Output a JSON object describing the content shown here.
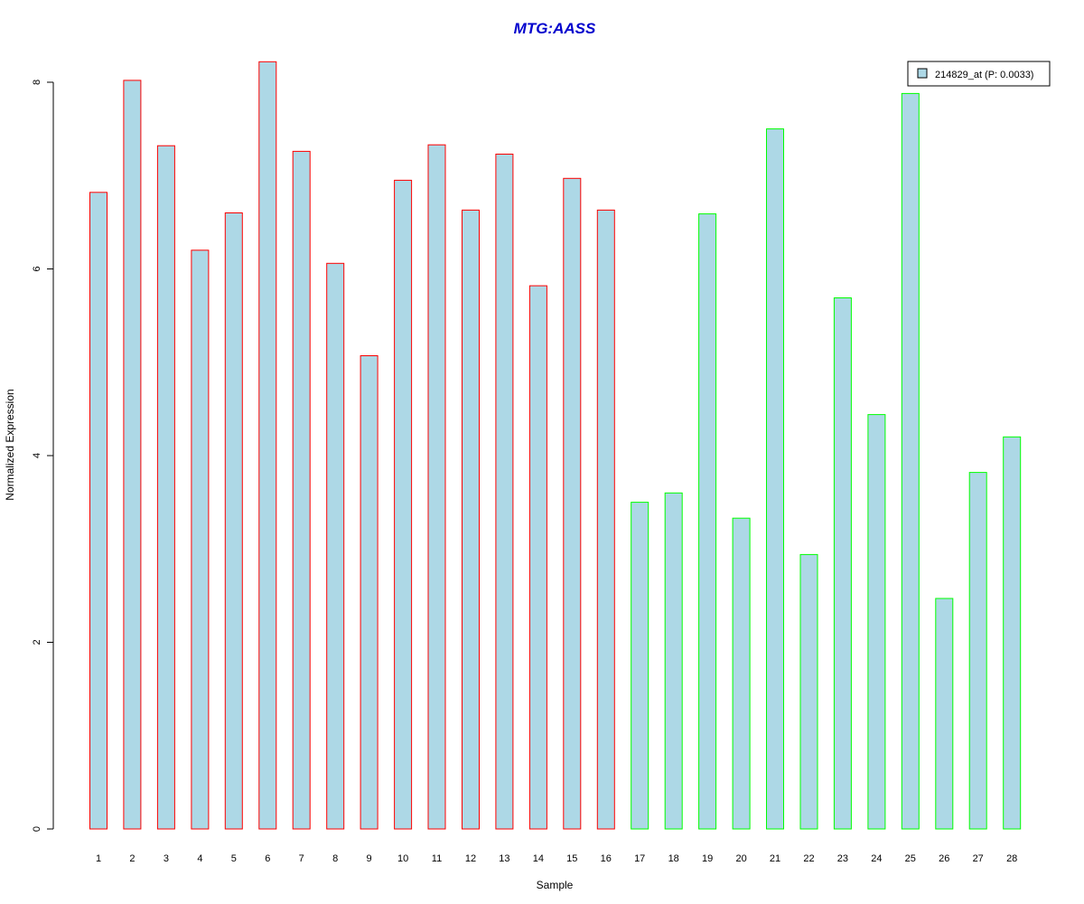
{
  "chart_data": {
    "type": "bar",
    "title": "MTG:AASS",
    "xlabel": "Sample",
    "ylabel": "Normalized Expression",
    "categories": [
      "1",
      "2",
      "3",
      "4",
      "5",
      "6",
      "7",
      "8",
      "9",
      "10",
      "11",
      "12",
      "13",
      "14",
      "15",
      "16",
      "17",
      "18",
      "19",
      "20",
      "21",
      "22",
      "23",
      "24",
      "25",
      "26",
      "27",
      "28"
    ],
    "series": [
      {
        "name": "214829_at (P: 0.0033)",
        "values": [
          6.82,
          8.02,
          7.32,
          6.2,
          6.6,
          8.22,
          7.26,
          6.06,
          5.07,
          6.95,
          7.33,
          6.63,
          7.23,
          5.82,
          6.97,
          6.63,
          3.5,
          3.6,
          6.59,
          3.33,
          7.5,
          2.94,
          5.69,
          4.44,
          7.88,
          2.47,
          3.82,
          4.2
        ]
      }
    ],
    "group_border_colors": [
      "#ff0000",
      "#ff0000",
      "#ff0000",
      "#ff0000",
      "#ff0000",
      "#ff0000",
      "#ff0000",
      "#ff0000",
      "#ff0000",
      "#ff0000",
      "#ff0000",
      "#ff0000",
      "#ff0000",
      "#ff0000",
      "#ff0000",
      "#ff0000",
      "#00ff00",
      "#00ff00",
      "#00ff00",
      "#00ff00",
      "#00ff00",
      "#00ff00",
      "#00ff00",
      "#00ff00",
      "#00ff00",
      "#00ff00",
      "#00ff00",
      "#00ff00"
    ],
    "bar_fill": "#add8e6",
    "title_color": "#0000cd",
    "ylim": [
      0,
      8.3
    ],
    "yticks": [
      0,
      2,
      4,
      6,
      8
    ],
    "grid": false,
    "legend_position": "top-right"
  }
}
